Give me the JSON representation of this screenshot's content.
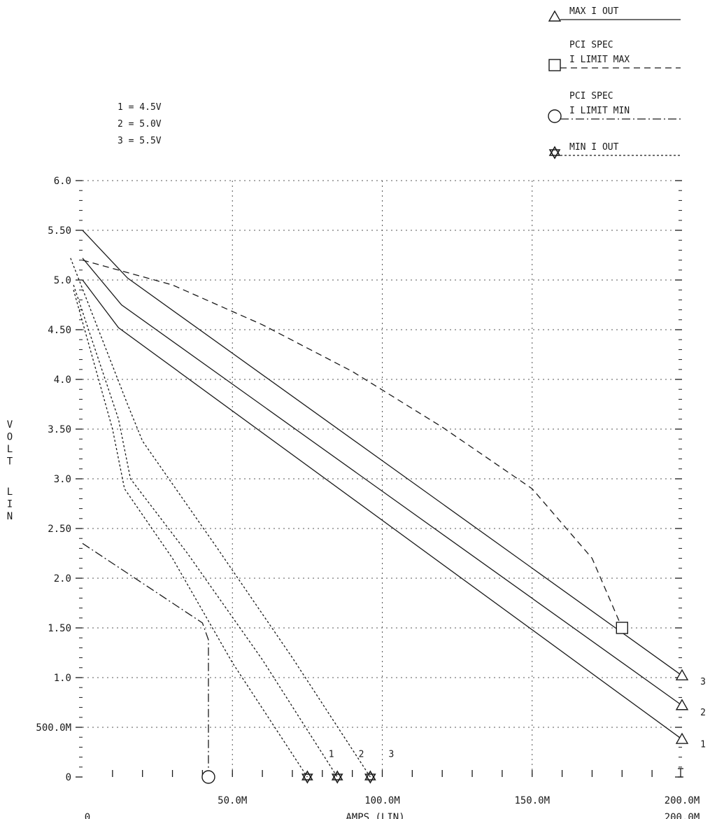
{
  "chart_data": {
    "type": "line",
    "xlabel": "AMPS (LIN)",
    "ylabel": "VOLT LIN",
    "xlim": [
      0,
      0.2
    ],
    "ylim": [
      0,
      6.0
    ],
    "x_ticks": [
      {
        "value": 0.05,
        "label": "50.0M"
      },
      {
        "value": 0.1,
        "label": "100.0M"
      },
      {
        "value": 0.15,
        "label": "150.0M"
      },
      {
        "value": 0.2,
        "label": "200.0M"
      }
    ],
    "x_origin_label": "0",
    "x_end_label_repeat": "200.0M",
    "y_ticks": [
      {
        "value": 0,
        "label": "0"
      },
      {
        "value": 0.5,
        "label": "500.0M"
      },
      {
        "value": 1.0,
        "label": "1.0"
      },
      {
        "value": 1.5,
        "label": "1.50"
      },
      {
        "value": 2.0,
        "label": "2.0"
      },
      {
        "value": 2.5,
        "label": "2.50"
      },
      {
        "value": 3.0,
        "label": "3.0"
      },
      {
        "value": 3.5,
        "label": "3.50"
      },
      {
        "value": 4.0,
        "label": "4.0"
      },
      {
        "value": 4.5,
        "label": "4.50"
      },
      {
        "value": 5.0,
        "label": "5.0"
      },
      {
        "value": 5.5,
        "label": "5.50"
      },
      {
        "value": 6.0,
        "label": "6.0"
      }
    ],
    "grid": true,
    "condition_key": [
      "1 = 4.5V",
      "2 = 5.0V",
      "3 = 5.5V"
    ],
    "legend_position": "top-right",
    "legend": [
      {
        "lines": [
          "MAX I OUT"
        ],
        "marker": "triangle",
        "dash": "solid"
      },
      {
        "lines": [
          "PCI SPEC",
          "I LIMIT MAX"
        ],
        "marker": "square",
        "dash": "dashed"
      },
      {
        "lines": [
          "PCI SPEC",
          "I LIMIT MIN"
        ],
        "marker": "circle",
        "dash": "dashdot"
      },
      {
        "lines": [
          "MIN I OUT"
        ],
        "marker": "star",
        "dash": "dotted"
      }
    ],
    "series": [
      {
        "name": "MAX I OUT",
        "label": "1",
        "dash": "solid",
        "marker": "triangle",
        "end_marker": true,
        "x": [
          0,
          0.012,
          0.2
        ],
        "y": [
          5.0,
          4.52,
          0.38
        ]
      },
      {
        "name": "MAX I OUT",
        "label": "2",
        "dash": "solid",
        "marker": "triangle",
        "end_marker": true,
        "x": [
          0,
          0.013,
          0.2
        ],
        "y": [
          5.22,
          4.75,
          0.72
        ]
      },
      {
        "name": "MAX I OUT",
        "label": "3",
        "dash": "solid",
        "marker": "triangle",
        "end_marker": true,
        "x": [
          0,
          0.015,
          0.2
        ],
        "y": [
          5.5,
          5.02,
          1.02
        ]
      },
      {
        "name": "PCI SPEC I LIMIT MAX",
        "dash": "dashed",
        "marker": "square",
        "end_marker": true,
        "x": [
          0,
          0.03,
          0.06,
          0.09,
          0.12,
          0.15,
          0.17,
          0.175,
          0.18
        ],
        "y": [
          5.2,
          4.95,
          4.55,
          4.08,
          3.52,
          2.9,
          2.2,
          1.85,
          1.5
        ]
      },
      {
        "name": "PCI SPEC I LIMIT MIN",
        "dash": "dashdot",
        "marker": "circle",
        "end_marker": true,
        "x": [
          0,
          0.04,
          0.042,
          0.042
        ],
        "y": [
          2.35,
          1.55,
          1.38,
          0
        ]
      },
      {
        "name": "MIN I OUT",
        "label": "1",
        "dash": "dotted",
        "marker": "star",
        "end_marker": true,
        "x": [
          -0.003,
          0.01,
          0.014,
          0.03,
          0.05,
          0.075
        ],
        "y": [
          4.9,
          3.5,
          2.9,
          2.2,
          1.15,
          0
        ]
      },
      {
        "name": "MIN I OUT",
        "label": "2",
        "dash": "dotted",
        "marker": "star",
        "end_marker": true,
        "x": [
          -0.003,
          0.012,
          0.016,
          0.035,
          0.06,
          0.085
        ],
        "y": [
          4.95,
          3.6,
          3.0,
          2.25,
          1.18,
          0
        ]
      },
      {
        "name": "MIN I OUT",
        "label": "3",
        "dash": "dotted",
        "marker": "star",
        "end_marker": true,
        "x": [
          -0.004,
          0.015,
          0.02,
          0.045,
          0.07,
          0.096
        ],
        "y": [
          5.22,
          3.75,
          3.38,
          2.3,
          1.2,
          0
        ]
      }
    ],
    "curve_number_labels": [
      {
        "label": "1",
        "x": 0.083,
        "y": 0.2
      },
      {
        "label": "2",
        "x": 0.093,
        "y": 0.2
      },
      {
        "label": "3",
        "x": 0.103,
        "y": 0.2
      },
      {
        "label": "1",
        "x": 0.207,
        "y": 0.3
      },
      {
        "label": "2",
        "x": 0.207,
        "y": 0.62
      },
      {
        "label": "3",
        "x": 0.207,
        "y": 0.93
      }
    ]
  }
}
